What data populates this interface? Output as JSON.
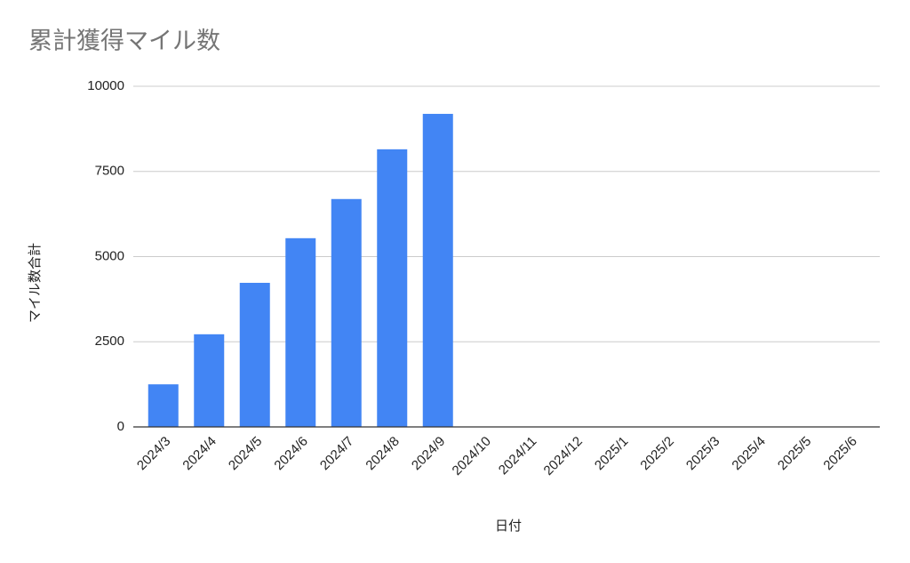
{
  "chart_data": {
    "type": "bar",
    "title": "累計獲得マイル数",
    "x_label": "日付",
    "y_label": "マイル数合計",
    "categories": [
      "2024/3",
      "2024/4",
      "2024/5",
      "2024/6",
      "2024/7",
      "2024/8",
      "2024/9",
      "2024/10",
      "2024/11",
      "2024/12",
      "2025/1",
      "2025/2",
      "2025/3",
      "2025/4",
      "2025/5",
      "2025/6"
    ],
    "values": [
      1250,
      2720,
      4230,
      5540,
      6690,
      8150,
      9190,
      null,
      null,
      null,
      null,
      null,
      null,
      null,
      null,
      null
    ],
    "color": "#4285f4",
    "ylim": [
      0,
      10000
    ],
    "yticks": [
      0,
      2500,
      5000,
      7500,
      10000
    ],
    "grid": true
  }
}
